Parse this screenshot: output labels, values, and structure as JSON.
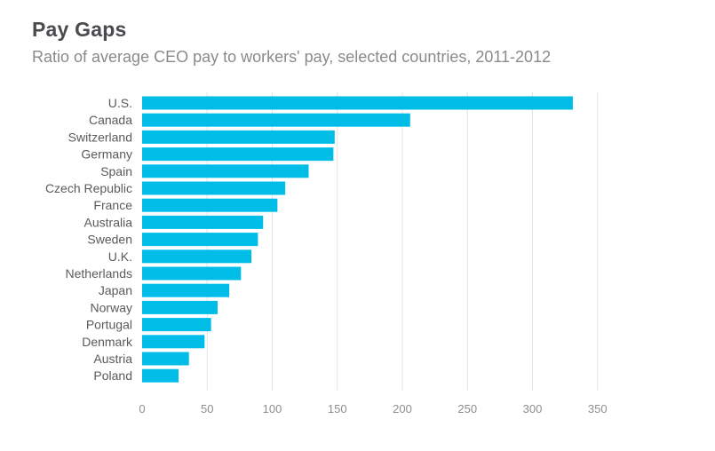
{
  "title": "Pay Gaps",
  "subtitle": "Ratio of average CEO pay to workers' pay, selected countries, 2011-2012",
  "colors": {
    "bar": "#00bde8",
    "grid": "#e4e4e4",
    "label": "#5a5a5e",
    "tick": "#8e8e92"
  },
  "chart_data": {
    "type": "bar",
    "orientation": "horizontal",
    "title": "Pay Gaps",
    "subtitle": "Ratio of average CEO pay to workers' pay, selected countries, 2011-2012",
    "xlabel": "",
    "ylabel": "",
    "xlim": [
      0,
      350
    ],
    "grid": true,
    "ticks": [
      0,
      50,
      100,
      150,
      200,
      250,
      300,
      350
    ],
    "categories": [
      "U.S.",
      "Canada",
      "Switzerland",
      "Germany",
      "Spain",
      "Czech Republic",
      "France",
      "Australia",
      "Sweden",
      "U.K.",
      "Netherlands",
      "Japan",
      "Norway",
      "Portugal",
      "Denmark",
      "Austria",
      "Poland"
    ],
    "values": [
      331,
      206,
      148,
      147,
      128,
      110,
      104,
      93,
      89,
      84,
      76,
      67,
      58,
      53,
      48,
      36,
      28
    ]
  }
}
